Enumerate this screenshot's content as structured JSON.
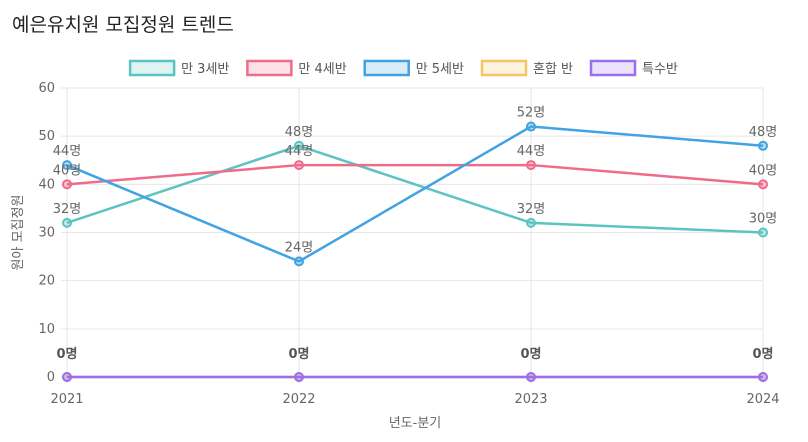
{
  "title": "예은유치원 모집정원 트렌드",
  "chart_data": {
    "type": "line",
    "categories": [
      "2021",
      "2022",
      "2023",
      "2024"
    ],
    "xlabel": "년도-분기",
    "ylabel": "원아 모집정원",
    "ylim": [
      0,
      60
    ],
    "yticks": [
      0,
      10,
      20,
      30,
      40,
      50,
      60
    ],
    "unit": "명",
    "grid": true,
    "legend_position": "top",
    "series": [
      {
        "name": "만 3세반",
        "values": [
          32,
          48,
          32,
          30
        ],
        "color": "#5cc4c0"
      },
      {
        "name": "만 4세반",
        "values": [
          40,
          44,
          44,
          40
        ],
        "color": "#f06b8a"
      },
      {
        "name": "만 5세반",
        "values": [
          44,
          24,
          52,
          48
        ],
        "color": "#41a3e3"
      },
      {
        "name": "혼합 반",
        "values": [
          0,
          0,
          0,
          0
        ],
        "color": "#f5c465"
      },
      {
        "name": "특수반",
        "values": [
          0,
          0,
          0,
          0
        ],
        "color": "#9b6ef0"
      }
    ]
  }
}
